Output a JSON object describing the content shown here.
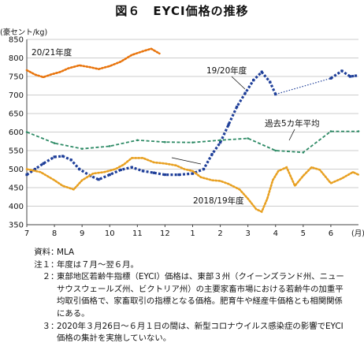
{
  "title": "図６　EYCI価格の推移",
  "chart_data": {
    "type": "line",
    "ylabel": "(豪セント/kg)",
    "ylim": [
      350,
      850
    ],
    "yticks": [
      350,
      400,
      450,
      500,
      550,
      600,
      650,
      700,
      750,
      800,
      850
    ],
    "xlim": [
      7,
      19
    ],
    "xticks": [
      "7",
      "8",
      "9",
      "10",
      "11",
      "12",
      "1",
      "2",
      "3",
      "4",
      "5",
      "6"
    ],
    "xunit": "(月)",
    "grid": true,
    "series": [
      {
        "name": "20/21年度",
        "color": "#e8740c",
        "style": "dotted",
        "points": [
          [
            7.0,
            767
          ],
          [
            7.3,
            755
          ],
          [
            7.6,
            748
          ],
          [
            7.9,
            756
          ],
          [
            8.2,
            762
          ],
          [
            8.5,
            772
          ],
          [
            8.9,
            780
          ],
          [
            9.3,
            775
          ],
          [
            9.6,
            770
          ],
          [
            10.0,
            778
          ],
          [
            10.4,
            790
          ],
          [
            10.8,
            808
          ],
          [
            11.2,
            818
          ],
          [
            11.5,
            825
          ],
          [
            11.8,
            812
          ]
        ]
      },
      {
        "name": "19/20年度",
        "color": "#1f3f99",
        "style": "squares",
        "points": [
          [
            7.0,
            485
          ],
          [
            7.3,
            500
          ],
          [
            7.6,
            515
          ],
          [
            8.0,
            533
          ],
          [
            8.3,
            535
          ],
          [
            8.6,
            525
          ],
          [
            8.9,
            500
          ],
          [
            9.3,
            482
          ],
          [
            9.6,
            472
          ],
          [
            10.0,
            485
          ],
          [
            10.4,
            498
          ],
          [
            10.8,
            505
          ],
          [
            11.2,
            495
          ],
          [
            11.6,
            490
          ],
          [
            12.0,
            485
          ],
          [
            12.5,
            485
          ],
          [
            13.0,
            488
          ],
          [
            13.4,
            500
          ],
          [
            13.7,
            540
          ],
          [
            14.0,
            572
          ],
          [
            14.3,
            620
          ],
          [
            14.6,
            668
          ],
          [
            14.9,
            705
          ],
          [
            15.2,
            740
          ],
          [
            15.5,
            762
          ],
          [
            15.8,
            735
          ],
          [
            16.0,
            702
          ],
          [
            18.0,
            745
          ],
          [
            18.4,
            765
          ],
          [
            18.7,
            750
          ],
          [
            18.9,
            752
          ]
        ],
        "gap_after_x": 16.0
      },
      {
        "name": "2018/19年度",
        "color": "#e8a021",
        "style": "dotted",
        "points": [
          [
            7.0,
            500
          ],
          [
            7.5,
            492
          ],
          [
            8.0,
            470
          ],
          [
            8.3,
            455
          ],
          [
            8.7,
            445
          ],
          [
            9.0,
            470
          ],
          [
            9.4,
            488
          ],
          [
            9.8,
            492
          ],
          [
            10.2,
            500
          ],
          [
            10.5,
            512
          ],
          [
            10.8,
            530
          ],
          [
            11.2,
            530
          ],
          [
            11.6,
            518
          ],
          [
            12.0,
            515
          ],
          [
            12.4,
            510
          ],
          [
            12.7,
            500
          ],
          [
            13.0,
            495
          ],
          [
            13.3,
            478
          ],
          [
            13.7,
            470
          ],
          [
            14.0,
            468
          ],
          [
            14.3,
            460
          ],
          [
            14.7,
            445
          ],
          [
            15.0,
            420
          ],
          [
            15.3,
            392
          ],
          [
            15.5,
            385
          ],
          [
            15.7,
            420
          ],
          [
            15.9,
            470
          ],
          [
            16.1,
            495
          ],
          [
            16.4,
            505
          ],
          [
            16.7,
            455
          ],
          [
            17.0,
            482
          ],
          [
            17.3,
            505
          ],
          [
            17.6,
            498
          ],
          [
            18.0,
            462
          ],
          [
            18.4,
            475
          ],
          [
            18.8,
            492
          ],
          [
            19.0,
            485
          ]
        ]
      },
      {
        "name": "過去5カ年平均",
        "color": "#2e8b66",
        "style": "dashed",
        "points": [
          [
            7.0,
            600
          ],
          [
            8.0,
            570
          ],
          [
            9.0,
            555
          ],
          [
            10.0,
            562
          ],
          [
            11.0,
            578
          ],
          [
            12.0,
            573
          ],
          [
            13.0,
            572
          ],
          [
            14.0,
            578
          ],
          [
            15.0,
            583
          ],
          [
            16.0,
            550
          ],
          [
            17.0,
            545
          ],
          [
            18.0,
            602
          ],
          [
            19.0,
            602
          ]
        ]
      }
    ]
  },
  "series_labels": {
    "s2021": "20/21年度",
    "s1920": "19/20年度",
    "s1819": "2018/19年度",
    "avg": "過去5カ年平均"
  },
  "notes": [
    {
      "label": "資料",
      "text": "MLA"
    },
    {
      "label": "注１",
      "text": "年度は７月～翌６月。"
    },
    {
      "label": "２",
      "text": "東部地区若齢牛指標（EYCI）価格は、東部３州（クイーンズランド州、ニューサウスウェールズ州、ビクトリア州）の主要家畜市場における若齢牛の加重平均取引価格で、家畜取引の指標となる価格。肥育牛や経産牛価格とも相関関係にある。"
    },
    {
      "label": "３",
      "text": "2020年３月26日～６月１日の間は、新型コロナウイルス感染症の影響でEYCI価格の集計を実施していない。"
    }
  ]
}
